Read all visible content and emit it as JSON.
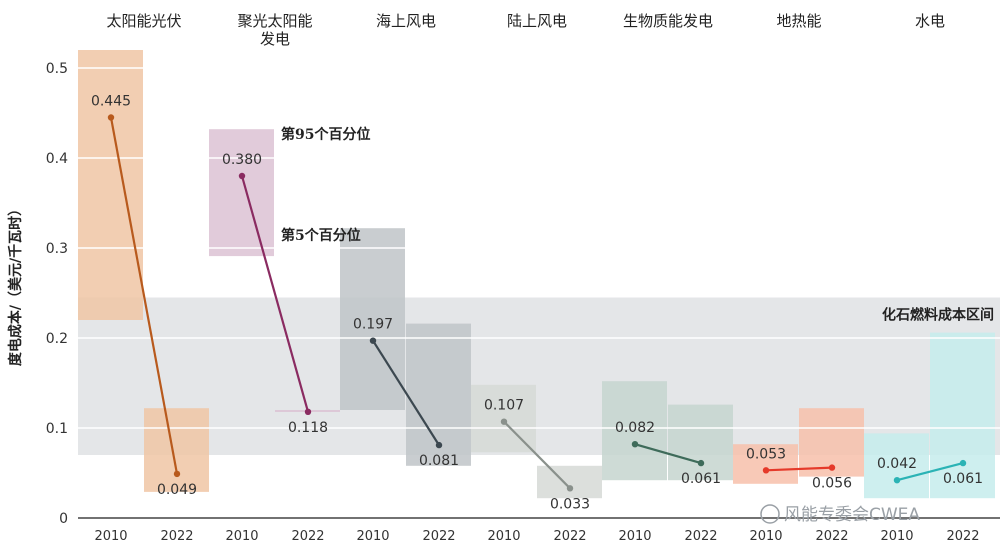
{
  "chart_data": {
    "type": "range-bar-line",
    "ylabel": "度电成本/（美元/千瓦时）",
    "ylim": [
      0,
      0.52
    ],
    "yticks": [
      0,
      0.1,
      0.2,
      0.3,
      0.4,
      0.5
    ],
    "ytick_labels": [
      "0",
      "0.1",
      "0.2",
      "0.3",
      "0.4",
      "0.5"
    ],
    "fossil_band": {
      "label": "化石燃料成本区间",
      "low": 0.07,
      "high": 0.245,
      "color": "#e4e6e8"
    },
    "annotations": {
      "p95": "第95个百分位",
      "p5": "第5个百分位"
    },
    "categories": [
      {
        "name": "太阳能光伏",
        "name_lines": [
          "太阳能光伏"
        ],
        "color": "#b85a1d",
        "box_color": "#f0c6a4",
        "years": [
          {
            "year": "2010",
            "value": 0.445,
            "label": "0.445",
            "p5": 0.22,
            "p95": 0.52
          },
          {
            "year": "2022",
            "value": 0.049,
            "label": "0.049",
            "p5": 0.029,
            "p95": 0.122
          }
        ]
      },
      {
        "name": "聚光太阳能发电",
        "name_lines": [
          "聚光太阳能",
          "发电"
        ],
        "color": "#8a2b61",
        "box_color": "#dcc2d3",
        "years": [
          {
            "year": "2010",
            "value": 0.38,
            "label": "0.380",
            "p5": 0.291,
            "p95": 0.432
          },
          {
            "year": "2022",
            "value": 0.118,
            "label": "0.118",
            "p5": 0.118,
            "p95": 0.12
          }
        ]
      },
      {
        "name": "海上风电",
        "name_lines": [
          "海上风电"
        ],
        "color": "#3c4850",
        "box_color": "#bfc4c8",
        "years": [
          {
            "year": "2010",
            "value": 0.197,
            "label": "0.197",
            "p5": 0.12,
            "p95": 0.322
          },
          {
            "year": "2022",
            "value": 0.081,
            "label": "0.081",
            "p5": 0.058,
            "p95": 0.216
          }
        ]
      },
      {
        "name": "陆上风电",
        "name_lines": [
          "陆上风电"
        ],
        "color": "#8a918c",
        "box_color": "#d6d9d6",
        "years": [
          {
            "year": "2010",
            "value": 0.107,
            "label": "0.107",
            "p5": 0.073,
            "p95": 0.148
          },
          {
            "year": "2022",
            "value": 0.033,
            "label": "0.033",
            "p5": 0.022,
            "p95": 0.058
          }
        ]
      },
      {
        "name": "生物质能发电",
        "name_lines": [
          "生物质能发电"
        ],
        "color": "#3e6b5a",
        "box_color": "#c5d5cf",
        "years": [
          {
            "year": "2010",
            "value": 0.082,
            "label": "0.082",
            "p5": 0.042,
            "p95": 0.152
          },
          {
            "year": "2022",
            "value": 0.061,
            "label": "0.061",
            "p5": 0.042,
            "p95": 0.126
          }
        ]
      },
      {
        "name": "地热能",
        "name_lines": [
          "地热能"
        ],
        "color": "#e53a2a",
        "box_color": "#f7c0aa",
        "years": [
          {
            "year": "2010",
            "value": 0.053,
            "label": "0.053",
            "p5": 0.038,
            "p95": 0.082
          },
          {
            "year": "2022",
            "value": 0.056,
            "label": "0.056",
            "p5": 0.046,
            "p95": 0.122
          }
        ]
      },
      {
        "name": "水电",
        "name_lines": [
          "水电"
        ],
        "color": "#2bb3b5",
        "box_color": "#c5ecec",
        "years": [
          {
            "year": "2010",
            "value": 0.042,
            "label": "0.042",
            "p5": 0.022,
            "p95": 0.094
          },
          {
            "year": "2022",
            "value": 0.061,
            "label": "0.061",
            "p5": 0.022,
            "p95": 0.206
          }
        ]
      }
    ]
  },
  "watermark": "风能专委会CWEA"
}
